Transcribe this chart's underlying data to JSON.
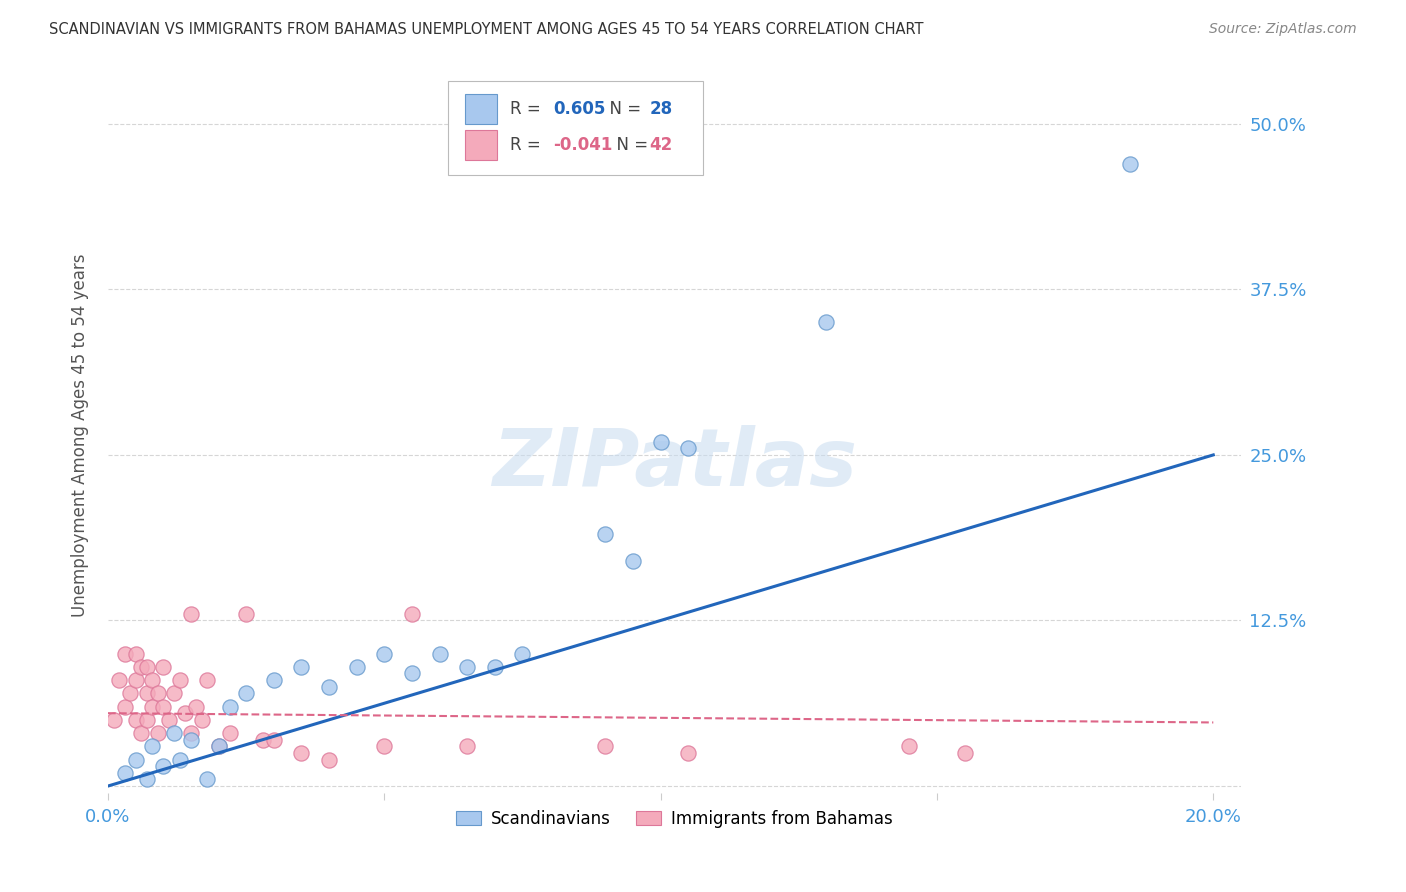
{
  "title": "SCANDINAVIAN VS IMMIGRANTS FROM BAHAMAS UNEMPLOYMENT AMONG AGES 45 TO 54 YEARS CORRELATION CHART",
  "source": "Source: ZipAtlas.com",
  "ylabel": "Unemployment Among Ages 45 to 54 years",
  "xlim": [
    0.0,
    0.205
  ],
  "ylim": [
    -0.005,
    0.535
  ],
  "xticks": [
    0.0,
    0.05,
    0.1,
    0.15,
    0.2
  ],
  "yticks": [
    0.0,
    0.125,
    0.25,
    0.375,
    0.5
  ],
  "xticklabels": [
    "0.0%",
    "",
    "",
    "",
    "20.0%"
  ],
  "yticklabels": [
    "",
    "12.5%",
    "25.0%",
    "37.5%",
    "50.0%"
  ],
  "blue_R": 0.605,
  "blue_N": 28,
  "pink_R": -0.041,
  "pink_N": 42,
  "blue_color": "#A8C8EE",
  "pink_color": "#F4AABB",
  "blue_edge_color": "#6699CC",
  "pink_edge_color": "#DD7799",
  "blue_line_color": "#2266BB",
  "pink_line_color": "#DD6688",
  "tick_label_color": "#4499DD",
  "legend_blue_label": "Scandinavians",
  "legend_pink_label": "Immigrants from Bahamas",
  "watermark": "ZIPatlas",
  "blue_scatter_x": [
    0.003,
    0.005,
    0.007,
    0.008,
    0.01,
    0.012,
    0.013,
    0.015,
    0.018,
    0.02,
    0.022,
    0.025,
    0.03,
    0.035,
    0.04,
    0.045,
    0.05,
    0.055,
    0.06,
    0.065,
    0.07,
    0.075,
    0.09,
    0.095,
    0.1,
    0.105,
    0.13,
    0.185
  ],
  "blue_scatter_y": [
    0.01,
    0.02,
    0.005,
    0.03,
    0.015,
    0.04,
    0.02,
    0.035,
    0.005,
    0.03,
    0.06,
    0.07,
    0.08,
    0.09,
    0.075,
    0.09,
    0.1,
    0.085,
    0.1,
    0.09,
    0.09,
    0.1,
    0.19,
    0.17,
    0.26,
    0.255,
    0.35,
    0.47
  ],
  "pink_scatter_x": [
    0.001,
    0.002,
    0.003,
    0.003,
    0.004,
    0.005,
    0.005,
    0.005,
    0.006,
    0.006,
    0.007,
    0.007,
    0.007,
    0.008,
    0.008,
    0.009,
    0.009,
    0.01,
    0.01,
    0.011,
    0.012,
    0.013,
    0.014,
    0.015,
    0.015,
    0.016,
    0.017,
    0.018,
    0.02,
    0.022,
    0.025,
    0.028,
    0.03,
    0.035,
    0.04,
    0.05,
    0.055,
    0.065,
    0.09,
    0.105,
    0.145,
    0.155
  ],
  "pink_scatter_y": [
    0.05,
    0.08,
    0.06,
    0.1,
    0.07,
    0.05,
    0.08,
    0.1,
    0.04,
    0.09,
    0.05,
    0.07,
    0.09,
    0.06,
    0.08,
    0.04,
    0.07,
    0.06,
    0.09,
    0.05,
    0.07,
    0.08,
    0.055,
    0.04,
    0.13,
    0.06,
    0.05,
    0.08,
    0.03,
    0.04,
    0.13,
    0.035,
    0.035,
    0.025,
    0.02,
    0.03,
    0.13,
    0.03,
    0.03,
    0.025,
    0.03,
    0.025
  ],
  "blue_line_x0": 0.0,
  "blue_line_y0": 0.0,
  "blue_line_x1": 0.2,
  "blue_line_y1": 0.25,
  "pink_line_x0": 0.0,
  "pink_line_y0": 0.055,
  "pink_line_x1": 0.2,
  "pink_line_y1": 0.048
}
